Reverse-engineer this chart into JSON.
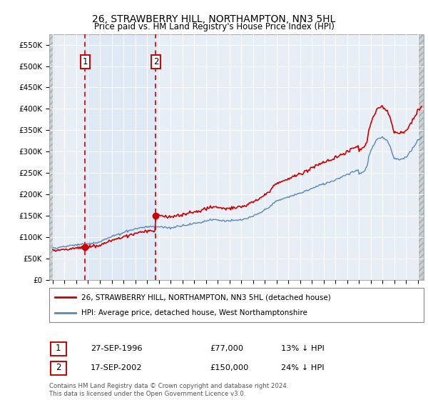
{
  "title": "26, STRAWBERRY HILL, NORTHAMPTON, NN3 5HL",
  "subtitle": "Price paid vs. HM Land Registry's House Price Index (HPI)",
  "sale1_year": 1996.75,
  "sale1_price": 77000,
  "sale2_year": 2002.75,
  "sale2_price": 150000,
  "legend_line1": "26, STRAWBERRY HILL, NORTHAMPTON, NN3 5HL (detached house)",
  "legend_line2": "HPI: Average price, detached house, West Northamptonshire",
  "table_row1": [
    "1",
    "27-SEP-1996",
    "£77,000",
    "13% ↓ HPI"
  ],
  "table_row2": [
    "2",
    "17-SEP-2002",
    "£150,000",
    "24% ↓ HPI"
  ],
  "footnote": "Contains HM Land Registry data © Crown copyright and database right 2024.\nThis data is licensed under the Open Government Licence v3.0.",
  "ylim": [
    0,
    575000
  ],
  "ytick_values": [
    0,
    50000,
    100000,
    150000,
    200000,
    250000,
    300000,
    350000,
    400000,
    450000,
    500000,
    550000
  ],
  "ytick_labels": [
    "£0",
    "£50K",
    "£100K",
    "£150K",
    "£200K",
    "£250K",
    "£300K",
    "£350K",
    "£400K",
    "£450K",
    "£500K",
    "£550K"
  ],
  "xstart": 1993.7,
  "xend": 2025.5,
  "hpi_color": "#5588bb",
  "price_color": "#cc0000",
  "vline_color": "#cc0000",
  "shade_color": "#dce8f5",
  "plot_bg": "#e8eef5",
  "grid_color": "#ffffff",
  "hatch_color": "#c0c8d0"
}
